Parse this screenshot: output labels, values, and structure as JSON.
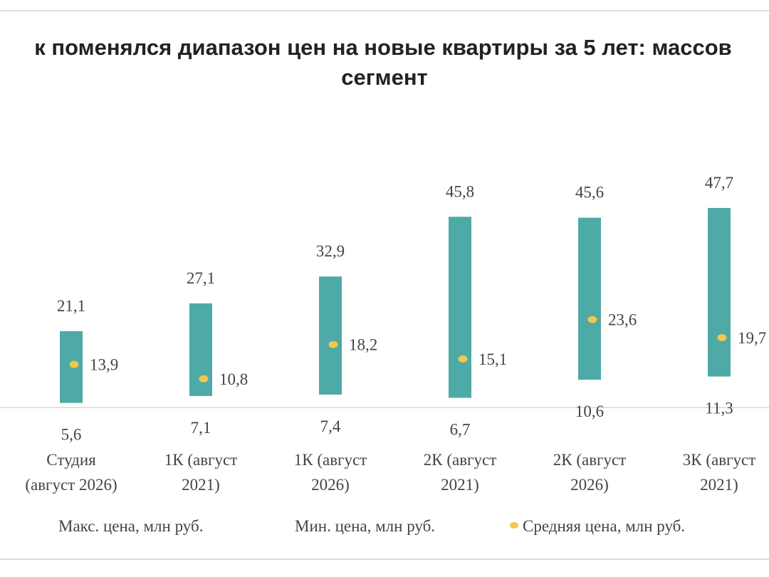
{
  "chart_data": {
    "type": "bar",
    "title": "к поменялся диапазон цен на новые квартиры за 5 лет: массов сегмент",
    "title_lines": [
      "к поменялся диапазон цен на новые квартиры за 5 лет: массов",
      "сегмент"
    ],
    "categories": [
      [
        "Студия",
        "(август 2026)"
      ],
      [
        "1К (август",
        "2021)"
      ],
      [
        "1К (август",
        "2026)"
      ],
      [
        "2К (август",
        "2021)"
      ],
      [
        "2К (август",
        "2026)"
      ],
      [
        "3К (август",
        "2021)"
      ]
    ],
    "series": [
      {
        "name": "Макс. цена, млн руб.",
        "values": [
          21.1,
          27.1,
          32.9,
          45.8,
          45.6,
          47.7
        ]
      },
      {
        "name": "Мин. цена, млн руб.",
        "values": [
          5.6,
          7.1,
          7.4,
          6.7,
          10.6,
          11.3
        ]
      },
      {
        "name": "Средняя цена, млн руб.",
        "values": [
          13.9,
          10.8,
          18.2,
          15.1,
          23.6,
          19.7
        ]
      }
    ],
    "max_labels": [
      "21,1",
      "27,1",
      "32,9",
      "45,8",
      "45,6",
      "47,7"
    ],
    "min_labels": [
      "5,6",
      "7,1",
      "7,4",
      "6,7",
      "10,6",
      "11,3"
    ],
    "avg_labels": [
      "13,9",
      "10,8",
      "18,2",
      "15,1",
      "23,6",
      "19,7"
    ],
    "legend_position": "bottom",
    "colors": {
      "range_bar": "#4daaa7",
      "avg_dot": "#f2c84b",
      "axis": "#d9d9d9",
      "text": "#444444"
    },
    "grid": false
  }
}
